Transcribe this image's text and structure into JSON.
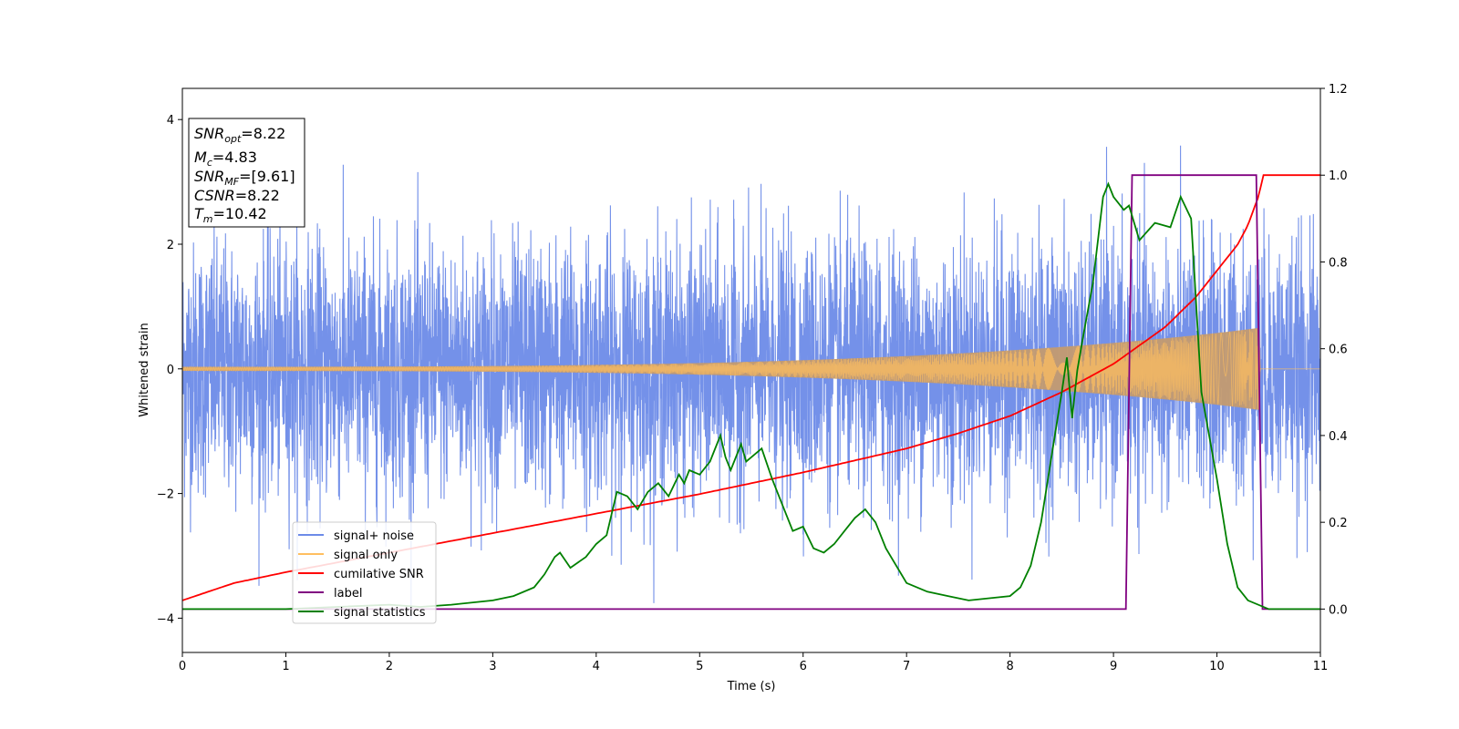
{
  "chart_data": {
    "type": "line",
    "xlabel": "Time (s)",
    "ylabel": "Whitened strain",
    "xlim": [
      0,
      11
    ],
    "ylim_left": [
      -4.55,
      4.5
    ],
    "ylim_right": [
      -0.1,
      1.2
    ],
    "x_ticks": [
      "0",
      "1",
      "2",
      "3",
      "4",
      "5",
      "6",
      "7",
      "8",
      "9",
      "10",
      "11"
    ],
    "y_left_ticks": [
      "4",
      "2",
      "0",
      "−2",
      "−4"
    ],
    "y_right_ticks": [
      "1.2",
      "1.0",
      "0.8",
      "0.6",
      "0.4",
      "0.2",
      "0.0"
    ],
    "grid": false,
    "legend_position": "lower-left",
    "info_box": {
      "snr_opt": {
        "base": "SNR",
        "sub": "opt",
        "value": "=8.22"
      },
      "mc": {
        "base": "M",
        "sub": "c",
        "value": "=4.83"
      },
      "snr_mf": {
        "base": "SNR",
        "sub": "MF",
        "value": "=[9.61]"
      },
      "csnr": {
        "base": "CSNR",
        "value": "=8.22"
      },
      "tm": {
        "base": "T",
        "sub": "m",
        "value": "=10.42"
      }
    },
    "series": [
      {
        "name": "signal+ noise",
        "axis": "left",
        "color": "#6d8be8",
        "description_range": [
          -4.15,
          3.95
        ],
        "approx_std": 1.0
      },
      {
        "name": "signal only",
        "axis": "left",
        "color": "#ffbf60",
        "fill_color": "#c39b70",
        "merger_time": 10.42,
        "amplitude_start": 0.02,
        "amplitude_end": 0.6
      },
      {
        "name": "cumilative SNR",
        "axis": "right",
        "color": "#ff0000",
        "x": [
          0,
          0.5,
          1,
          2,
          3,
          4,
          5,
          6,
          7,
          7.5,
          8,
          8.5,
          9,
          9.5,
          9.8,
          10,
          10.2,
          10.3,
          10.4,
          10.45,
          11
        ],
        "y": [
          0.02,
          0.06,
          0.085,
          0.13,
          0.175,
          0.22,
          0.265,
          0.315,
          0.37,
          0.405,
          0.445,
          0.5,
          0.565,
          0.65,
          0.72,
          0.78,
          0.84,
          0.885,
          0.95,
          1.0,
          1.0
        ]
      },
      {
        "name": "label",
        "axis": "right",
        "color": "#800080",
        "x": [
          0,
          9.12,
          9.18,
          10.38,
          10.44,
          11
        ],
        "y": [
          0,
          0,
          1,
          1,
          0,
          0
        ]
      },
      {
        "name": "signal statistics",
        "axis": "right",
        "color": "#008000",
        "x": [
          0,
          1,
          2,
          2.3,
          2.6,
          3.0,
          3.2,
          3.4,
          3.5,
          3.6,
          3.65,
          3.75,
          3.9,
          4.0,
          4.1,
          4.2,
          4.3,
          4.4,
          4.5,
          4.6,
          4.7,
          4.8,
          4.85,
          4.9,
          5.0,
          5.1,
          5.2,
          5.25,
          5.3,
          5.4,
          5.45,
          5.5,
          5.6,
          5.7,
          5.8,
          5.9,
          6.0,
          6.1,
          6.2,
          6.3,
          6.4,
          6.5,
          6.6,
          6.7,
          6.8,
          7.0,
          7.2,
          7.4,
          7.6,
          7.8,
          8.0,
          8.1,
          8.2,
          8.3,
          8.4,
          8.5,
          8.55,
          8.6,
          8.65,
          8.7,
          8.8,
          8.9,
          8.95,
          9.0,
          9.1,
          9.15,
          9.25,
          9.4,
          9.55,
          9.65,
          9.75,
          9.85,
          10.0,
          10.1,
          10.2,
          10.3,
          10.5,
          11
        ],
        "y": [
          0,
          0.0,
          0.01,
          0.005,
          0.01,
          0.02,
          0.03,
          0.05,
          0.08,
          0.12,
          0.13,
          0.095,
          0.12,
          0.15,
          0.17,
          0.27,
          0.26,
          0.23,
          0.27,
          0.29,
          0.26,
          0.31,
          0.29,
          0.32,
          0.31,
          0.34,
          0.4,
          0.35,
          0.32,
          0.38,
          0.34,
          0.35,
          0.37,
          0.3,
          0.24,
          0.18,
          0.19,
          0.14,
          0.13,
          0.15,
          0.18,
          0.21,
          0.23,
          0.2,
          0.14,
          0.06,
          0.04,
          0.03,
          0.02,
          0.025,
          0.03,
          0.05,
          0.1,
          0.2,
          0.35,
          0.5,
          0.58,
          0.44,
          0.55,
          0.62,
          0.75,
          0.95,
          0.98,
          0.95,
          0.92,
          0.93,
          0.85,
          0.89,
          0.88,
          0.95,
          0.9,
          0.5,
          0.3,
          0.15,
          0.05,
          0.02,
          0.0,
          0
        ]
      }
    ]
  }
}
